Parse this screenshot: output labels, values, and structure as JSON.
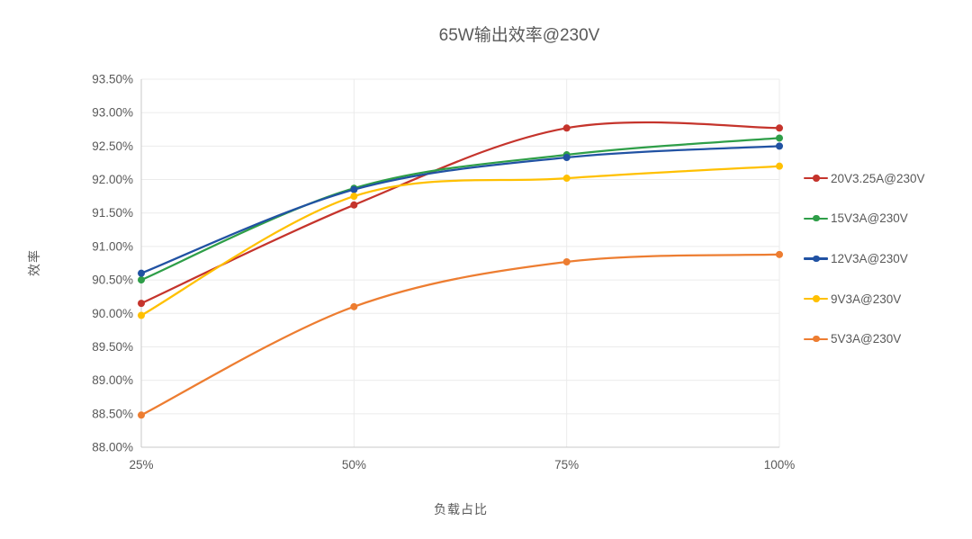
{
  "colors": {
    "background": "#FFFFFF",
    "text": "#595959",
    "gridline": "#EBEBEB",
    "axis_line": "#C8C8C8"
  },
  "chart_data": {
    "type": "line",
    "smooth": true,
    "marker": "circle",
    "title": "65W输出效率@230V",
    "xlabel": "负载占比",
    "ylabel": "效率",
    "x_tick_labels": [
      "25%",
      "50%",
      "75%",
      "100%"
    ],
    "x": [
      25,
      50,
      75,
      100
    ],
    "y_tick_labels": [
      "88.00%",
      "88.50%",
      "89.00%",
      "89.50%",
      "90.00%",
      "90.50%",
      "91.00%",
      "91.50%",
      "92.00%",
      "92.50%",
      "93.00%",
      "93.50%"
    ],
    "ylim": [
      88.0,
      93.5
    ],
    "y_tick_step": 0.5,
    "grid": true,
    "legend_position": "right",
    "series": [
      {
        "name": "20V3.25A@230V",
        "color": "#C5342C",
        "values": [
          90.15,
          91.62,
          92.77,
          92.77
        ]
      },
      {
        "name": "15V3A@230V",
        "color": "#2E9E48",
        "values": [
          90.5,
          91.87,
          92.37,
          92.62
        ]
      },
      {
        "name": "12V3A@230V",
        "color": "#2152A3",
        "values": [
          90.6,
          91.85,
          92.33,
          92.5
        ]
      },
      {
        "name": "9V3A@230V",
        "color": "#FFC000",
        "values": [
          89.97,
          91.75,
          92.02,
          92.2
        ]
      },
      {
        "name": "5V3A@230V",
        "color": "#ED7D31",
        "values": [
          88.48,
          90.1,
          90.77,
          90.88
        ]
      }
    ]
  }
}
